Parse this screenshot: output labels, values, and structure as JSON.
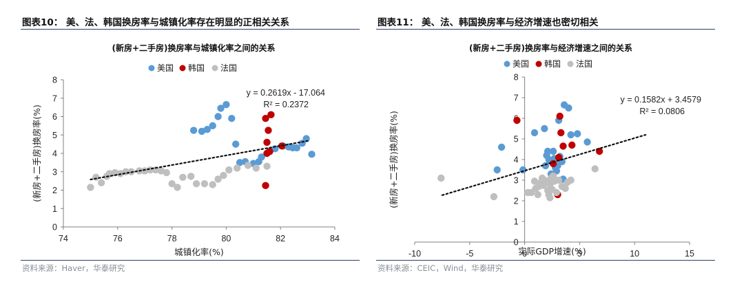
{
  "panels": [
    {
      "fig_title": "图表10：  美、法、韩国换房率与城镇化率存在明显的正相关关系",
      "source": "资料来源：Haver，华泰研究"
    },
    {
      "fig_title": "图表11：  美、法、韩国换房率与经济增速也密切相关",
      "source": "资料来源：CEIC，Wind，华泰研究"
    }
  ],
  "chart_data": [
    {
      "type": "scatter",
      "title": "(新房+二手房)换房率与城镇化率之间的关系",
      "xlabel": "城镇化率(%)",
      "ylabel": "(新房+二手房)换房率(%)",
      "xlim": [
        74,
        84
      ],
      "ylim": [
        0,
        8
      ],
      "xticks": [
        74,
        76,
        78,
        80,
        82,
        84
      ],
      "yticks": [
        0,
        1,
        2,
        3,
        4,
        5,
        6,
        7,
        8
      ],
      "legend_position": "top-center",
      "grid": false,
      "equation": "y = 0.2619x - 17.064",
      "r_squared": "R² = 0.2372",
      "trendline": {
        "slope": 0.2619,
        "intercept": -17.064,
        "x_range": [
          75,
          83
        ],
        "color": "#111111"
      },
      "series": [
        {
          "name": "美国",
          "color": "#5b9bd5",
          "points": [
            [
              78.8,
              5.25
            ],
            [
              79.1,
              5.2
            ],
            [
              79.3,
              5.3
            ],
            [
              79.5,
              5.5
            ],
            [
              79.7,
              6.0
            ],
            [
              79.8,
              6.45
            ],
            [
              80.0,
              6.65
            ],
            [
              80.2,
              5.9
            ],
            [
              80.35,
              4.5
            ],
            [
              80.5,
              3.5
            ],
            [
              80.7,
              3.55
            ],
            [
              81.0,
              3.45
            ],
            [
              81.2,
              3.55
            ],
            [
              81.3,
              3.8
            ],
            [
              81.5,
              4.0
            ],
            [
              81.6,
              4.1
            ],
            [
              81.8,
              4.25
            ],
            [
              82.1,
              4.4
            ],
            [
              82.3,
              4.35
            ],
            [
              82.45,
              4.3
            ],
            [
              82.6,
              4.3
            ],
            [
              82.8,
              4.55
            ],
            [
              82.95,
              4.8
            ],
            [
              83.15,
              3.95
            ]
          ]
        },
        {
          "name": "韩国",
          "color": "#c00000",
          "points": [
            [
              81.45,
              5.9
            ],
            [
              81.65,
              6.1
            ],
            [
              81.55,
              5.25
            ],
            [
              81.5,
              4.6
            ],
            [
              81.5,
              4.0
            ],
            [
              81.6,
              4.1
            ],
            [
              82.05,
              4.4
            ],
            [
              81.45,
              2.25
            ]
          ]
        },
        {
          "name": "法国",
          "color": "#bfbfbf",
          "points": [
            [
              75.0,
              2.15
            ],
            [
              75.2,
              2.7
            ],
            [
              75.4,
              2.4
            ],
            [
              75.6,
              2.75
            ],
            [
              75.7,
              2.9
            ],
            [
              75.9,
              2.95
            ],
            [
              76.1,
              2.9
            ],
            [
              76.3,
              3.0
            ],
            [
              76.5,
              3.0
            ],
            [
              76.8,
              3.05
            ],
            [
              77.0,
              3.05
            ],
            [
              77.2,
              3.1
            ],
            [
              77.4,
              3.1
            ],
            [
              77.6,
              3.05
            ],
            [
              77.8,
              2.95
            ],
            [
              78.0,
              2.35
            ],
            [
              78.2,
              2.15
            ],
            [
              78.4,
              2.7
            ],
            [
              78.7,
              2.75
            ],
            [
              78.9,
              2.35
            ],
            [
              79.2,
              2.35
            ],
            [
              79.5,
              2.3
            ],
            [
              79.7,
              2.6
            ],
            [
              79.9,
              2.8
            ],
            [
              80.1,
              3.1
            ],
            [
              80.4,
              3.2
            ],
            [
              80.8,
              3.35
            ],
            [
              81.1,
              3.2
            ],
            [
              81.5,
              3.3
            ]
          ]
        }
      ]
    },
    {
      "type": "scatter",
      "title": "(新房+二手房)换房率与经济增速之间的关系",
      "xlabel": "实际GDP增速(%)",
      "ylabel": "(新房+二手房)换房率(%)",
      "xlim": [
        -10,
        15
      ],
      "ylim": [
        0,
        8
      ],
      "xticks": [
        -10,
        -5,
        0,
        5,
        10,
        15
      ],
      "yticks": [
        0,
        1,
        2,
        3,
        4,
        5,
        6,
        7,
        8
      ],
      "legend_position": "top-center",
      "grid": false,
      "equation": "y = 0.1582x + 3.4579",
      "r_squared": "R² = 0.0806",
      "trendline": {
        "slope": 0.1582,
        "intercept": 3.4579,
        "x_range": [
          -7.5,
          11
        ],
        "color": "#111111"
      },
      "series": [
        {
          "name": "美国",
          "color": "#5b9bd5",
          "points": [
            [
              -2.5,
              3.5
            ],
            [
              -2.1,
              4.6
            ],
            [
              -0.15,
              3.5
            ],
            [
              0.9,
              5.3
            ],
            [
              1.8,
              5.5
            ],
            [
              2.1,
              4.4
            ],
            [
              2.2,
              4.0
            ],
            [
              2.4,
              3.3
            ],
            [
              2.6,
              4.4
            ],
            [
              2.8,
              3.6
            ],
            [
              2.9,
              3.45
            ],
            [
              3.1,
              5.9
            ],
            [
              3.2,
              4.15
            ],
            [
              3.4,
              3.9
            ],
            [
              3.5,
              3.05
            ],
            [
              3.6,
              6.65
            ],
            [
              4.0,
              6.5
            ],
            [
              4.2,
              5.2
            ],
            [
              4.8,
              5.25
            ],
            [
              5.7,
              4.85
            ],
            [
              1.9,
              3.7
            ],
            [
              2.0,
              4.2
            ],
            [
              2.7,
              4.05
            ],
            [
              3.0,
              3.7
            ]
          ]
        },
        {
          "name": "韩国",
          "color": "#c00000",
          "points": [
            [
              -0.7,
              5.9
            ],
            [
              3.2,
              6.1
            ],
            [
              3.3,
              5.3
            ],
            [
              4.3,
              4.7
            ],
            [
              3.5,
              4.65
            ],
            [
              2.6,
              3.8
            ],
            [
              3.1,
              4.1
            ],
            [
              6.8,
              4.4
            ],
            [
              3.0,
              2.3
            ]
          ]
        },
        {
          "name": "法国",
          "color": "#bfbfbf",
          "points": [
            [
              -7.6,
              3.1
            ],
            [
              -2.8,
              2.2
            ],
            [
              0.3,
              2.4
            ],
            [
              0.6,
              2.4
            ],
            [
              0.9,
              2.95
            ],
            [
              1.0,
              2.6
            ],
            [
              1.2,
              2.3
            ],
            [
              1.3,
              2.7
            ],
            [
              1.5,
              2.9
            ],
            [
              1.6,
              3.1
            ],
            [
              1.7,
              2.75
            ],
            [
              1.8,
              3.0
            ],
            [
              2.0,
              2.95
            ],
            [
              2.1,
              2.5
            ],
            [
              2.2,
              2.3
            ],
            [
              2.3,
              2.8
            ],
            [
              2.4,
              3.1
            ],
            [
              2.5,
              2.55
            ],
            [
              2.6,
              3.2
            ],
            [
              2.7,
              2.95
            ],
            [
              2.9,
              2.4
            ],
            [
              3.1,
              3.0
            ],
            [
              3.4,
              2.7
            ],
            [
              3.7,
              2.6
            ],
            [
              3.9,
              2.9
            ],
            [
              4.2,
              3.0
            ],
            [
              2.3,
              2.15
            ],
            [
              6.4,
              3.55
            ]
          ]
        }
      ]
    }
  ]
}
